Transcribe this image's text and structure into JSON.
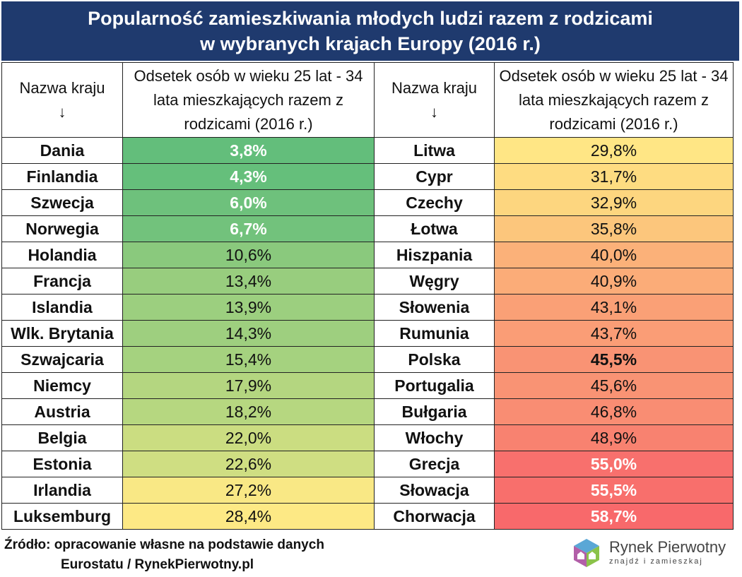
{
  "title": {
    "line1": "Popularność zamieszkiwania młodych ludzi razem z rodzicami",
    "line2": "w wybranych krajach Europy (2016 r.)"
  },
  "header": {
    "country_label": "Nazwa kraju",
    "arrow": "↓",
    "value_label": "Odsetek osób w wieku 25 lat - 34 lata mieszkających razem z rodzicami (2016 r.)"
  },
  "left_rows": [
    {
      "country": "Dania",
      "value": "3,8%",
      "color": "#63be7b",
      "bold": true,
      "light": true
    },
    {
      "country": "Finlandia",
      "value": "4,3%",
      "color": "#65bf7b",
      "bold": true,
      "light": true
    },
    {
      "country": "Szwecja",
      "value": "6,0%",
      "color": "#6ec17c",
      "bold": true,
      "light": true
    },
    {
      "country": "Norwegia",
      "value": "6,7%",
      "color": "#72c27c",
      "bold": true,
      "light": true
    },
    {
      "country": "Holandia",
      "value": "10,6%",
      "color": "#8ac97d",
      "bold": false,
      "light": false
    },
    {
      "country": "Francja",
      "value": "13,4%",
      "color": "#98cd7e",
      "bold": false,
      "light": false
    },
    {
      "country": "Islandia",
      "value": "13,9%",
      "color": "#9ccf7f",
      "bold": false,
      "light": false
    },
    {
      "country": "Wlk. Brytania",
      "value": "14,3%",
      "color": "#9ecf7f",
      "bold": false,
      "light": false
    },
    {
      "country": "Szwajcaria",
      "value": "15,4%",
      "color": "#a5d27f",
      "bold": false,
      "light": false
    },
    {
      "country": "Niemcy",
      "value": "17,9%",
      "color": "#b4d680",
      "bold": false,
      "light": false
    },
    {
      "country": "Austria",
      "value": "18,2%",
      "color": "#b6d780",
      "bold": false,
      "light": false
    },
    {
      "country": "Belgia",
      "value": "22,0%",
      "color": "#cbdd81",
      "bold": false,
      "light": false
    },
    {
      "country": "Estonia",
      "value": "22,6%",
      "color": "#cfde82",
      "bold": false,
      "light": false
    },
    {
      "country": "Irlandia",
      "value": "27,2%",
      "color": "#f9e885",
      "bold": false,
      "light": false
    },
    {
      "country": "Luksemburg",
      "value": "28,4%",
      "color": "#fde985",
      "bold": false,
      "light": false
    }
  ],
  "right_rows": [
    {
      "country": "Litwa",
      "value": "29,8%",
      "color": "#ffe685",
      "bold": false,
      "light": false
    },
    {
      "country": "Cypr",
      "value": "31,7%",
      "color": "#fedc81",
      "bold": false,
      "light": false
    },
    {
      "country": "Czechy",
      "value": "32,9%",
      "color": "#fdd67f",
      "bold": false,
      "light": false
    },
    {
      "country": "Łotwa",
      "value": "35,8%",
      "color": "#fcc67c",
      "bold": false,
      "light": false
    },
    {
      "country": "Hiszpania",
      "value": "40,0%",
      "color": "#fbb179",
      "bold": false,
      "light": false
    },
    {
      "country": "Węgry",
      "value": "40,9%",
      "color": "#fbac78",
      "bold": false,
      "light": false
    },
    {
      "country": "Słowenia",
      "value": "43,1%",
      "color": "#faa076",
      "bold": false,
      "light": false
    },
    {
      "country": "Rumunia",
      "value": "43,7%",
      "color": "#fa9d76",
      "bold": false,
      "light": false
    },
    {
      "country": "Polska",
      "value": "45,5%",
      "color": "#f99374",
      "bold": true,
      "light": false
    },
    {
      "country": "Portugalia",
      "value": "45,6%",
      "color": "#f99374",
      "bold": false,
      "light": false
    },
    {
      "country": "Bułgaria",
      "value": "46,8%",
      "color": "#f98d73",
      "bold": false,
      "light": false
    },
    {
      "country": "Włochy",
      "value": "48,9%",
      "color": "#f88270",
      "bold": false,
      "light": false
    },
    {
      "country": "Grecja",
      "value": "55,0%",
      "color": "#f8706d",
      "bold": true,
      "light": true
    },
    {
      "country": "Słowacja",
      "value": "55,5%",
      "color": "#f86f6c",
      "bold": true,
      "light": true
    },
    {
      "country": "Chorwacja",
      "value": "58,7%",
      "color": "#f8696b",
      "bold": true,
      "light": true
    }
  ],
  "footer": {
    "line1": "Źródło: opracowanie własne na podstawie danych",
    "line2": "Eurostatu / RynekPierwotny.pl"
  },
  "logo": {
    "name": "Rynek Pierwotny",
    "tagline": "znajdź i zamieszkaj"
  }
}
